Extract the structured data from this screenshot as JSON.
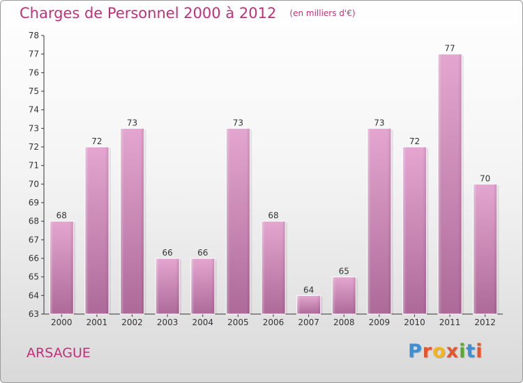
{
  "header": {
    "title": "Charges de Personnel 2000 à 2012",
    "unit": "(en milliers d'€)"
  },
  "footer": {
    "commune": "ARSAGUE",
    "logo_text": "Proxiti",
    "logo_colors": [
      "#3a8fd6",
      "#e8542a",
      "#f2b51c",
      "#e8542a",
      "#5aa832",
      "#3a8fd6",
      "#e8542a"
    ]
  },
  "colors": {
    "bar": "#cf84b6",
    "title": "#c0307a"
  },
  "chart_data": {
    "type": "bar",
    "title": "Charges de Personnel 2000 à 2012",
    "subtitle": "(en milliers d'€)",
    "categories": [
      "2000",
      "2001",
      "2002",
      "2003",
      "2004",
      "2005",
      "2006",
      "2007",
      "2008",
      "2009",
      "2010",
      "2011",
      "2012"
    ],
    "values": [
      68,
      72,
      73,
      66,
      66,
      73,
      68,
      64,
      65,
      73,
      72,
      77,
      70
    ],
    "ylim": [
      63,
      78
    ],
    "yticks": [
      63,
      64,
      65,
      66,
      67,
      68,
      69,
      70,
      71,
      72,
      73,
      74,
      75,
      76,
      77,
      78
    ],
    "grid": false,
    "data_labels": true
  }
}
